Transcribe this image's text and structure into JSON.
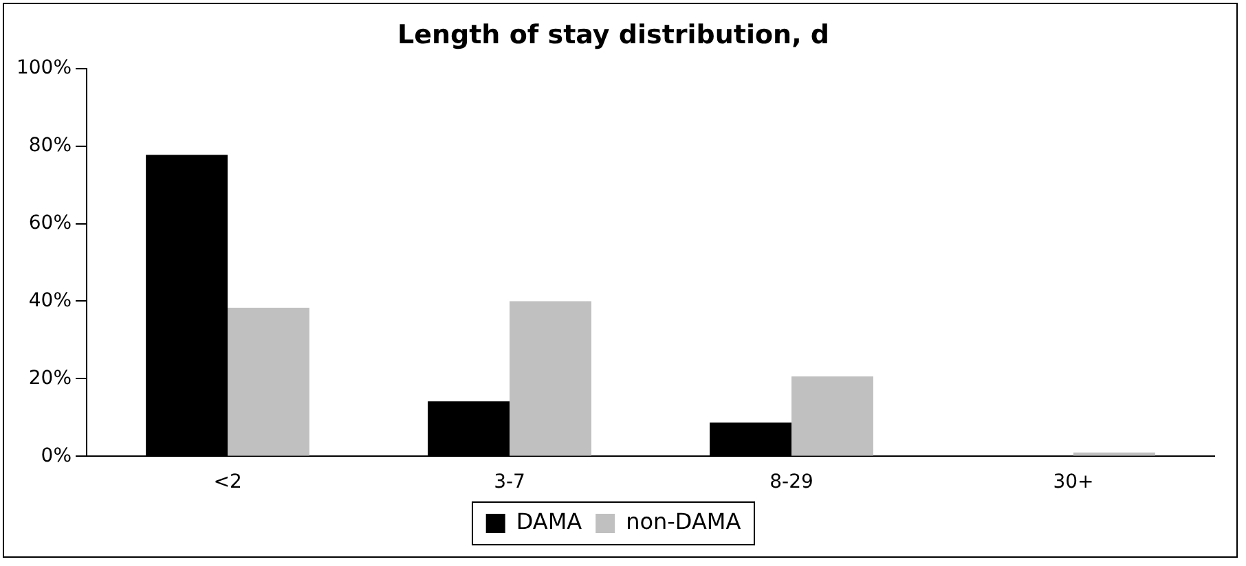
{
  "chart_data": {
    "type": "bar",
    "title": "Length of stay distribution, d",
    "categories": [
      "<2",
      "3-7",
      "8-29",
      "30+"
    ],
    "series": [
      {
        "name": "DAMA",
        "color": "#000000",
        "values": [
          77.7,
          14.2,
          8.7,
          0
        ]
      },
      {
        "name": "non-DAMA",
        "color": "#c0c0c0",
        "values": [
          38.3,
          40.0,
          20.6,
          1.0
        ]
      }
    ],
    "ylim": [
      0,
      100
    ],
    "yticks": [
      {
        "value": 0,
        "label": "0%"
      },
      {
        "value": 20,
        "label": "20%"
      },
      {
        "value": 40,
        "label": "40%"
      },
      {
        "value": 60,
        "label": "60%"
      },
      {
        "value": 80,
        "label": "80%"
      },
      {
        "value": 100,
        "label": "100%"
      }
    ],
    "grid": false,
    "legend": "bottom"
  }
}
